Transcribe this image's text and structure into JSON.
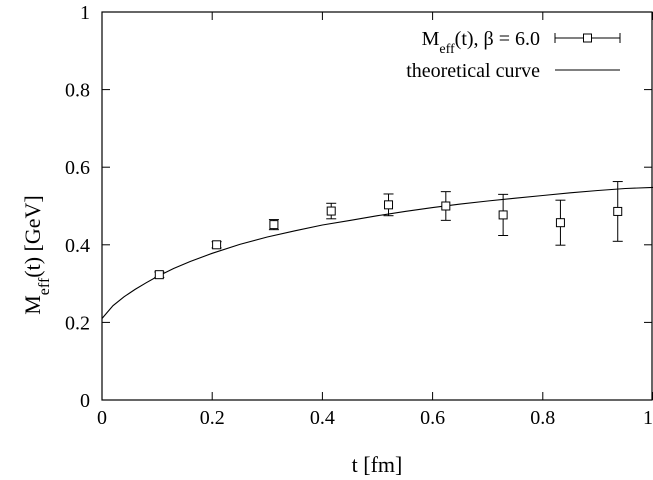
{
  "chart_data": {
    "type": "scatter",
    "title": "",
    "xlabel": "t [fm]",
    "ylabel": {
      "base": "M",
      "sub": "eff",
      "rest": "(t) [GeV]"
    },
    "xlim": [
      0,
      1
    ],
    "ylim": [
      0,
      1
    ],
    "xticks": [
      {
        "v": 0,
        "label": "0"
      },
      {
        "v": 0.2,
        "label": "0.2"
      },
      {
        "v": 0.4,
        "label": "0.4"
      },
      {
        "v": 0.6,
        "label": "0.6"
      },
      {
        "v": 0.8,
        "label": "0.8"
      },
      {
        "v": 1,
        "label": "1"
      }
    ],
    "yticks": [
      {
        "v": 0,
        "label": "0"
      },
      {
        "v": 0.2,
        "label": "0.2"
      },
      {
        "v": 0.4,
        "label": "0.4"
      },
      {
        "v": 0.6,
        "label": "0.6"
      },
      {
        "v": 0.8,
        "label": "0.8"
      },
      {
        "v": 1,
        "label": "1"
      }
    ],
    "grid": false,
    "legend_position": "top-right",
    "series": [
      {
        "kind": "points-with-errorbars",
        "legend": {
          "base": "M",
          "sub": "eff",
          "rest": "(t), β = 6.0"
        },
        "points": [
          {
            "x": 0.104,
            "y": 0.323,
            "err": 0.007
          },
          {
            "x": 0.208,
            "y": 0.4,
            "err": 0.008
          },
          {
            "x": 0.312,
            "y": 0.452,
            "err": 0.013
          },
          {
            "x": 0.416,
            "y": 0.487,
            "err": 0.02
          },
          {
            "x": 0.52,
            "y": 0.503,
            "err": 0.028
          },
          {
            "x": 0.624,
            "y": 0.5,
            "err": 0.037
          },
          {
            "x": 0.728,
            "y": 0.477,
            "err": 0.053
          },
          {
            "x": 0.832,
            "y": 0.457,
            "err": 0.058
          },
          {
            "x": 0.936,
            "y": 0.486,
            "err": 0.077
          }
        ]
      },
      {
        "kind": "line",
        "legend": {
          "base": "theoretical curve",
          "sub": "",
          "rest": ""
        },
        "points": [
          {
            "x": 0.0,
            "y": 0.21
          },
          {
            "x": 0.02,
            "y": 0.243
          },
          {
            "x": 0.04,
            "y": 0.266
          },
          {
            "x": 0.06,
            "y": 0.285
          },
          {
            "x": 0.08,
            "y": 0.302
          },
          {
            "x": 0.1,
            "y": 0.318
          },
          {
            "x": 0.13,
            "y": 0.339
          },
          {
            "x": 0.16,
            "y": 0.357
          },
          {
            "x": 0.2,
            "y": 0.378
          },
          {
            "x": 0.25,
            "y": 0.401
          },
          {
            "x": 0.3,
            "y": 0.42
          },
          {
            "x": 0.35,
            "y": 0.436
          },
          {
            "x": 0.4,
            "y": 0.451
          },
          {
            "x": 0.45,
            "y": 0.463
          },
          {
            "x": 0.5,
            "y": 0.475
          },
          {
            "x": 0.55,
            "y": 0.486
          },
          {
            "x": 0.6,
            "y": 0.496
          },
          {
            "x": 0.65,
            "y": 0.505
          },
          {
            "x": 0.7,
            "y": 0.513
          },
          {
            "x": 0.75,
            "y": 0.52
          },
          {
            "x": 0.8,
            "y": 0.527
          },
          {
            "x": 0.85,
            "y": 0.534
          },
          {
            "x": 0.9,
            "y": 0.54
          },
          {
            "x": 0.95,
            "y": 0.545
          },
          {
            "x": 1.0,
            "y": 0.548
          }
        ]
      }
    ]
  }
}
